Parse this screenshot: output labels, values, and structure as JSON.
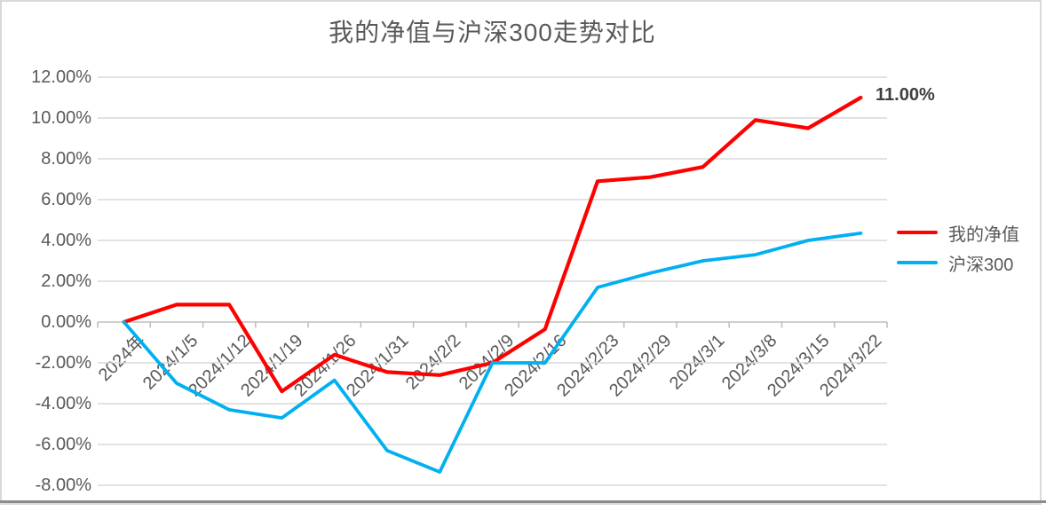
{
  "chart": {
    "title": "我的净值与沪深300走势对比",
    "final_data_label": "11.00%"
  },
  "chart_data": {
    "type": "line",
    "title": "我的净值与沪深300走势对比",
    "categories": [
      "2024年",
      "2024/1/5",
      "2024/1/12",
      "2024/1/19",
      "2024/1/26",
      "2024/1/31",
      "2024/2/2",
      "2024/2/9",
      "2024/2/16",
      "2024/2/23",
      "2024/2/29",
      "2024/3/1",
      "2024/3/8",
      "2024/3/15",
      "2024/3/22"
    ],
    "series": [
      {
        "name": "我的净值",
        "color": "#FF0000",
        "values": [
          0.0,
          0.85,
          0.85,
          -3.4,
          -1.6,
          -2.45,
          -2.6,
          -2.0,
          -0.35,
          6.9,
          7.1,
          7.6,
          9.9,
          9.5,
          11.0
        ]
      },
      {
        "name": "沪深300",
        "color": "#00B0F0",
        "values": [
          0.0,
          -3.0,
          -4.3,
          -4.7,
          -2.85,
          -6.3,
          -7.35,
          -2.0,
          -2.0,
          1.7,
          2.4,
          3.0,
          3.3,
          4.0,
          4.35
        ]
      }
    ],
    "value_unit": "%",
    "ylim": [
      -8,
      12
    ],
    "y_tick_step": 2,
    "y_tick_values": [
      12,
      10,
      8,
      6,
      4,
      2,
      0,
      -2,
      -4,
      -6,
      -8
    ],
    "y_tick_labels": [
      "12.00%",
      "10.00%",
      "8.00%",
      "6.00%",
      "4.00%",
      "2.00%",
      "0.00%",
      "-2.00%",
      "-4.00%",
      "-6.00%",
      "-8.00%"
    ],
    "grid": true,
    "legend_position": "right",
    "annotations": [
      {
        "text": "11.00%",
        "series": "我的净值",
        "category": "2024/3/22"
      }
    ],
    "axis_colors": {
      "gridline": "#D9D9D9",
      "axis_line": "#BFBFBF",
      "label_text": "#595959"
    }
  },
  "legend": {
    "items": [
      {
        "label": "我的净值",
        "color": "#FF0000"
      },
      {
        "label": "沪深300",
        "color": "#00B0F0"
      }
    ]
  }
}
